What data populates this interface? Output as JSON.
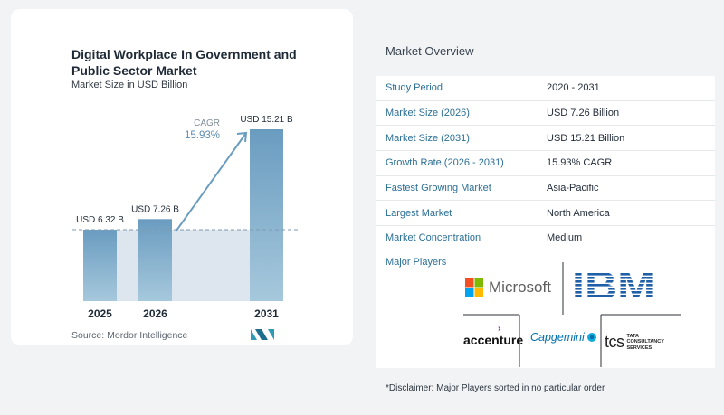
{
  "chart_data": {
    "type": "bar",
    "title": "Digital Workplace In Government and Public Sector Market",
    "subtitle": "Market Size in USD Billion",
    "categories": [
      "2025",
      "2026",
      "2031"
    ],
    "values": [
      6.32,
      7.26,
      15.21
    ],
    "value_labels": [
      "USD 6.32 B",
      "USD 7.26 B",
      "USD 15.21 B"
    ],
    "cagr_label": "CAGR",
    "cagr_value": "15.93%",
    "colors": {
      "bar": "#6a9cc0",
      "bar_light": "#a6c8dc",
      "shade": "#dde6ee",
      "arrow": "#6a9cc0"
    }
  },
  "source": "Source: Mordor Intelligence",
  "overview": {
    "title": "Market Overview",
    "rows": [
      {
        "key": "Study Period",
        "value": "2020 - 2031"
      },
      {
        "key": "Market Size (2026)",
        "value": "USD 7.26 Billion"
      },
      {
        "key": "Market Size (2031)",
        "value": "USD 15.21 Billion"
      },
      {
        "key": "Growth Rate (2026 - 2031)",
        "value": "15.93% CAGR"
      },
      {
        "key": "Fastest Growing Market",
        "value": "Asia-Pacific"
      },
      {
        "key": "Largest Market",
        "value": "North America"
      },
      {
        "key": "Market Concentration",
        "value": "Medium"
      }
    ]
  },
  "players": {
    "title": "Major Players",
    "logos": {
      "microsoft": "Microsoft",
      "ibm": "IBM",
      "accenture": "accenture",
      "capgemini": "Capgemini",
      "tcs": "tcs",
      "tcs_sub": [
        "TATA",
        "CONSULTANCY",
        "SERVICES"
      ]
    }
  },
  "disclaimer": "*Disclaimer: Major Players sorted in no particular order"
}
